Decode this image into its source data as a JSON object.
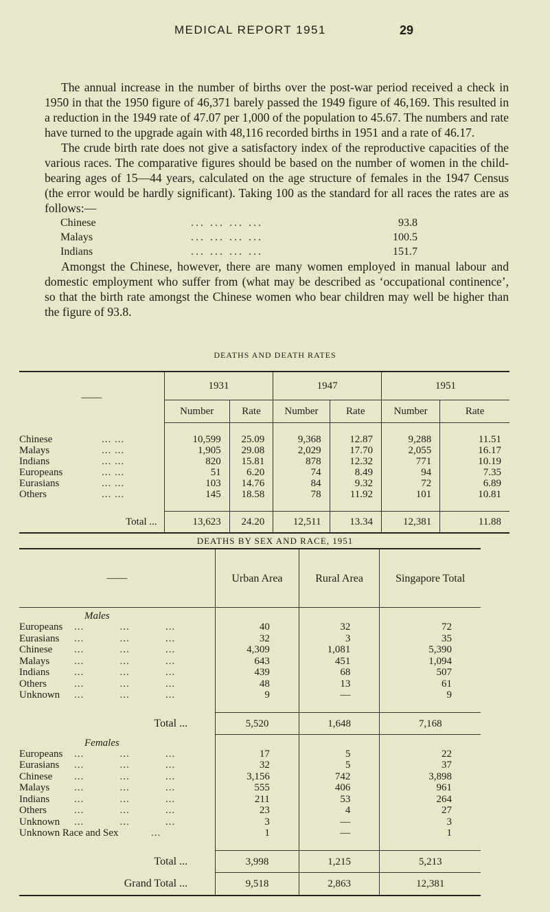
{
  "header": {
    "title": "MEDICAL REPORT 1951",
    "page_number": "29"
  },
  "paragraphs": [
    "The annual increase in the number of births over the post-war period received a check in 1950 in that the 1950 figure of 46,371 barely passed the 1949 figure of 46,169. This resulted in a reduction in the 1949 rate of 47.07 per 1,000 of the population to 45.67. The numbers and rate have turned to the upgrade again with 48,116 recorded births in 1951 and a rate of 46.17.",
    "The crude birth rate does not give a satisfactory index of the reproductive capacities of the various races. The comparative figures should be based on the number of women in the child-bearing ages of 15—44 years, calculated on the age structure of females in the 1947 Census (the error would be hardly significant). Taking 100 as the standard for all races the rates are as follows:—",
    "Amongst the Chinese, however, there are many women employed in manual labour and domestic employment who suffer from (what may be described as ‘occupational continence’, so that the birth rate amongst the Chinese women who bear children may well be higher than the figure of 93.8."
  ],
  "birth_rates": [
    {
      "race": "Chinese",
      "dots": "...  ...  ...  ...",
      "rate": "93.8"
    },
    {
      "race": "Malays",
      "dots": "...  ...  ...  ...",
      "rate": "100.5"
    },
    {
      "race": "Indians",
      "dots": "...  ...  ...  ...",
      "rate": "151.7"
    }
  ],
  "table1": {
    "title": "DEATHS AND DEATH RATES",
    "corner": "——",
    "years": [
      "1931",
      "1947",
      "1951"
    ],
    "subheaders": [
      "Number",
      "Rate",
      "Number",
      "Rate",
      "Number",
      "Rate"
    ],
    "rows": [
      {
        "label": "Chinese",
        "values": [
          "10,599",
          "25.09",
          "9,368",
          "12.87",
          "9,288",
          "11.51"
        ]
      },
      {
        "label": "Malays",
        "values": [
          "1,905",
          "29.08",
          "2,029",
          "17.70",
          "2,055",
          "16.17"
        ]
      },
      {
        "label": "Indians",
        "values": [
          "820",
          "15.81",
          "878",
          "12.32",
          "771",
          "10.19"
        ]
      },
      {
        "label": "Europeans",
        "values": [
          "51",
          "6.20",
          "74",
          "8.49",
          "94",
          "7.35"
        ]
      },
      {
        "label": "Eurasians",
        "values": [
          "103",
          "14.76",
          "84",
          "9.32",
          "72",
          "6.89"
        ]
      },
      {
        "label": "Others",
        "values": [
          "145",
          "18.58",
          "78",
          "11.92",
          "101",
          "10.81"
        ]
      }
    ],
    "total": {
      "label": "Total ...",
      "values": [
        "13,623",
        "24.20",
        "12,511",
        "13.34",
        "12,381",
        "11.88"
      ]
    }
  },
  "table2": {
    "title": "DEATHS BY SEX AND RACE, 1951",
    "corner": "——",
    "headers": [
      "Urban Area",
      "Rural Area",
      "Singapore Total"
    ],
    "males": {
      "label": "Males",
      "rows": [
        {
          "label": "Europeans",
          "values": [
            "40",
            "32",
            "72"
          ]
        },
        {
          "label": "Eurasians",
          "values": [
            "32",
            "3",
            "35"
          ]
        },
        {
          "label": "Chinese",
          "values": [
            "4,309",
            "1,081",
            "5,390"
          ]
        },
        {
          "label": "Malays",
          "values": [
            "643",
            "451",
            "1,094"
          ]
        },
        {
          "label": "Indians",
          "values": [
            "439",
            "68",
            "507"
          ]
        },
        {
          "label": "Others",
          "values": [
            "48",
            "13",
            "61"
          ]
        },
        {
          "label": "Unknown",
          "values": [
            "9",
            "—",
            "9"
          ]
        }
      ],
      "total": {
        "label": "Total ...",
        "values": [
          "5,520",
          "1,648",
          "7,168"
        ]
      }
    },
    "females": {
      "label": "Females",
      "rows": [
        {
          "label": "Europeans",
          "values": [
            "17",
            "5",
            "22"
          ]
        },
        {
          "label": "Eurasians",
          "values": [
            "32",
            "5",
            "37"
          ]
        },
        {
          "label": "Chinese",
          "values": [
            "3,156",
            "742",
            "3,898"
          ]
        },
        {
          "label": "Malays",
          "values": [
            "555",
            "406",
            "961"
          ]
        },
        {
          "label": "Indians",
          "values": [
            "211",
            "53",
            "264"
          ]
        },
        {
          "label": "Others",
          "values": [
            "23",
            "4",
            "27"
          ]
        },
        {
          "label": "Unknown",
          "values": [
            "3",
            "—",
            "3"
          ]
        },
        {
          "label": "Unknown Race and Sex",
          "values": [
            "1",
            "—",
            "1"
          ]
        }
      ],
      "total": {
        "label": "Total ...",
        "values": [
          "3,998",
          "1,215",
          "5,213"
        ]
      }
    },
    "grand_total": {
      "label": "Grand Total ...",
      "values": [
        "9,518",
        "2,863",
        "12,381"
      ]
    }
  }
}
